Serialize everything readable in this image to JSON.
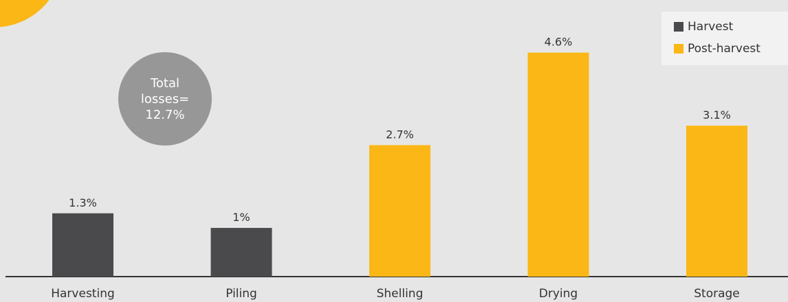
{
  "chart_data": {
    "type": "bar",
    "categories": [
      "Harvesting",
      "Piling",
      "Shelling",
      "Drying",
      "Storage"
    ],
    "values": [
      1.3,
      1,
      2.7,
      4.6,
      3.1
    ],
    "value_labels": [
      "1.3%",
      "1%",
      "2.7%",
      "4.6%",
      "3.1%"
    ],
    "groups": [
      "Harvest",
      "Harvest",
      "Post-harvest",
      "Post-harvest",
      "Post-harvest"
    ],
    "unit": "%",
    "ylim": [
      0,
      5.3
    ],
    "grid": false,
    "legend_position": "top-right",
    "series": [
      {
        "name": "Harvest",
        "color": "#4a4a4c"
      },
      {
        "name": "Post-harvest",
        "color": "#fbb715"
      }
    ]
  },
  "annotation": {
    "lines": [
      "Total",
      "losses=",
      "12.7%"
    ]
  },
  "colors": {
    "background": "#e6e6e6",
    "axis": "#333333",
    "accent": "#fbb715"
  }
}
